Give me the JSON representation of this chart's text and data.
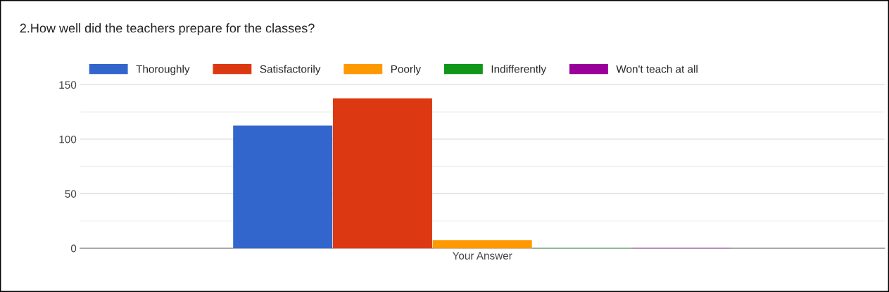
{
  "chart_data": {
    "type": "bar",
    "title": "2.How well did the teachers prepare for the classes?",
    "categories": [
      "Your Answer"
    ],
    "series": [
      {
        "name": "Thoroughly",
        "color": "#3366cc",
        "values": [
          112
        ]
      },
      {
        "name": "Satisfactorily",
        "color": "#dc3912",
        "values": [
          137
        ]
      },
      {
        "name": "Poorly",
        "color": "#ff9900",
        "values": [
          7
        ]
      },
      {
        "name": "Indifferently",
        "color": "#109618",
        "values": [
          0
        ]
      },
      {
        "name": "Won't teach at all",
        "color": "#990099",
        "values": [
          0
        ]
      }
    ],
    "ylim": [
      0,
      150
    ],
    "yticks": [
      0,
      50,
      100,
      150
    ],
    "grid": "y",
    "legend": "top left"
  }
}
